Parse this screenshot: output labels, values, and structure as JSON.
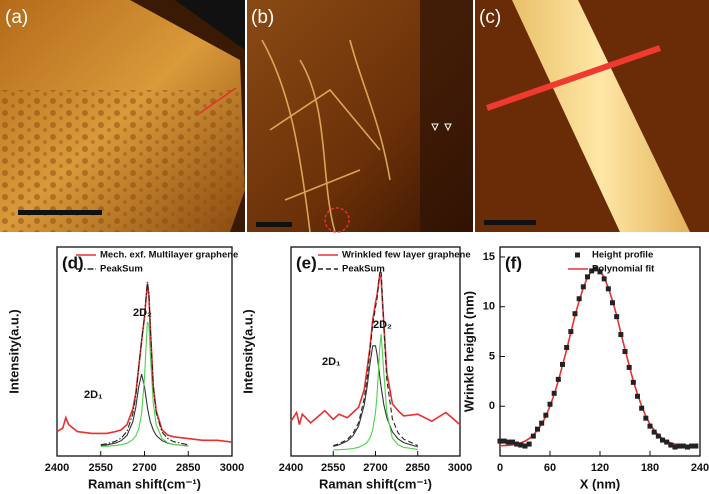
{
  "images": [
    {
      "label": "(a)"
    },
    {
      "label": "(b)"
    },
    {
      "label": "(c)"
    }
  ],
  "chart_data": [
    {
      "type": "line",
      "label": "(d)",
      "xlabel": "Raman shift(cm⁻¹)",
      "ylabel": "Intensity(a.u.)",
      "xlim": [
        2400,
        3000
      ],
      "xticks": [
        2400,
        2550,
        2700,
        2850,
        3000
      ],
      "ylim": [
        0,
        120
      ],
      "annotations": [
        "2D₁",
        "2D₂"
      ],
      "x": [
        2400,
        2420,
        2430,
        2440,
        2470,
        2520,
        2550,
        2570,
        2600,
        2620,
        2640,
        2660,
        2670,
        2680,
        2690,
        2700,
        2705,
        2710,
        2715,
        2720,
        2730,
        2740,
        2760,
        2780,
        2800,
        2850,
        2900,
        2950,
        3000
      ],
      "series": [
        {
          "name": "Mech. exf. Multilayer graphene",
          "color": "#e8302e",
          "style": "solid",
          "legend": true,
          "values": [
            14,
            16,
            22,
            18,
            14,
            13,
            13,
            13,
            14,
            15,
            18,
            27,
            36,
            51,
            66,
            80,
            90,
            99,
            92,
            74,
            40,
            26,
            15,
            12,
            11,
            10,
            9,
            9,
            8
          ]
        },
        {
          "name": "PeakSum",
          "color": "#222222",
          "style": "dashdot",
          "legend": true,
          "values": [
            null,
            null,
            null,
            null,
            null,
            null,
            6.5,
            7.0,
            8.4,
            10.3,
            14.1,
            24.1,
            34.5,
            50.2,
            66.2,
            79.7,
            90.7,
            100,
            93.3,
            73.7,
            39.8,
            24.8,
            13.8,
            10,
            8.2,
            6.45,
            null,
            null,
            null
          ]
        }
      ],
      "components": [
        {
          "color": "#333333",
          "values": [
            null,
            null,
            null,
            null,
            null,
            null,
            6,
            6.4,
            7.4,
            8.8,
            11.8,
            19.7,
            28,
            39.7,
            47,
            39.7,
            33.7,
            28,
            23.3,
            19.7,
            14.8,
            11.8,
            8.8,
            7.4,
            6.6,
            5.8,
            null,
            null,
            null
          ]
        },
        {
          "color": "#4fd24a",
          "values": [
            null,
            null,
            null,
            null,
            null,
            null,
            5.5,
            5.6,
            6.0,
            6.5,
            7.3,
            9.4,
            11.5,
            15.5,
            24.2,
            45,
            62,
            77,
            75,
            59,
            30,
            18,
            10,
            7.6,
            6.6,
            5.65,
            null,
            null,
            null
          ]
        }
      ]
    },
    {
      "type": "line",
      "label": "(e)",
      "xlabel": "Raman shift(cm⁻¹)",
      "ylabel": "Intensity(a.u.)",
      "xlim": [
        2400,
        3000
      ],
      "xticks": [
        2400,
        2550,
        2700,
        2850,
        3000
      ],
      "ylim": [
        0,
        120
      ],
      "annotations": [
        "2D₁",
        "2D₂"
      ],
      "x": [
        2400,
        2420,
        2430,
        2440,
        2470,
        2520,
        2550,
        2570,
        2600,
        2620,
        2640,
        2660,
        2670,
        2680,
        2690,
        2700,
        2705,
        2710,
        2715,
        2720,
        2730,
        2740,
        2760,
        2780,
        2800,
        2850,
        2900,
        2950,
        3000
      ],
      "series": [
        {
          "name": "Wrinkled few layer graphene",
          "color": "#e8302e",
          "style": "solid",
          "legend": true,
          "values": [
            20,
            25,
            18,
            24,
            19,
            26,
            21,
            24,
            22,
            25,
            28,
            38,
            50,
            62,
            78,
            88,
            92,
            98,
            104,
            102,
            75,
            48,
            30,
            26,
            23,
            24,
            20,
            25,
            18
          ]
        },
        {
          "name": "PeakSum",
          "color": "#222222",
          "style": "dashed",
          "legend": true,
          "values": [
            null,
            null,
            null,
            null,
            null,
            null,
            5.9,
            7,
            9.5,
            12.9,
            19.2,
            32.8,
            44.6,
            59.9,
            75.3,
            85.3,
            89.8,
            96.6,
            105,
            106.7,
            73.3,
            44,
            21.2,
            13.4,
            9.7,
            6,
            null,
            null,
            null
          ]
        }
      ],
      "components": [
        {
          "color": "#333333",
          "values": [
            null,
            null,
            null,
            null,
            null,
            null,
            5.5,
            6.4,
            8.6,
            11.6,
            17.2,
            29.3,
            39.7,
            52.6,
            63.3,
            63.3,
            58.8,
            52.6,
            46,
            39.7,
            29.3,
            22,
            13.9,
            9.9,
            7.7,
            5.2,
            null,
            null,
            null
          ]
        },
        {
          "color": "#4fd24a",
          "values": [
            null,
            null,
            null,
            null,
            null,
            null,
            3.4,
            3.6,
            3.9,
            4.3,
            5,
            6.5,
            7.9,
            10.3,
            15,
            25,
            34,
            47,
            62,
            70,
            47,
            25,
            10.3,
            6.5,
            5,
            3.8,
            null,
            null,
            null
          ]
        }
      ]
    },
    {
      "type": "scatter",
      "label": "(f)",
      "xlabel": "X (nm)",
      "ylabel": "Wrinkle height (nm)",
      "xlim": [
        0,
        240
      ],
      "xticks": [
        0,
        60,
        120,
        180,
        240
      ],
      "ylim": [
        -5,
        16
      ],
      "yticks": [
        0,
        5,
        10,
        15
      ],
      "x": [
        0,
        5,
        10,
        15,
        20,
        25,
        30,
        35,
        40,
        45,
        50,
        55,
        60,
        65,
        70,
        75,
        80,
        85,
        90,
        95,
        100,
        105,
        110,
        115,
        120,
        125,
        130,
        135,
        140,
        145,
        150,
        155,
        160,
        165,
        170,
        175,
        180,
        185,
        190,
        195,
        200,
        205,
        210,
        215,
        220,
        225,
        230,
        235
      ],
      "series": [
        {
          "name": "Height profile",
          "color": "#222222",
          "style": "marker",
          "legend": true,
          "values": [
            -3.5,
            -3.5,
            -3.6,
            -3.6,
            -3.8,
            -3.9,
            -4.0,
            -3.8,
            -3.0,
            -2.3,
            -1.7,
            -0.9,
            0.2,
            1.3,
            2.7,
            4.2,
            5.9,
            7.5,
            9.3,
            10.8,
            12.0,
            13.0,
            13.6,
            13.8,
            13.5,
            12.8,
            11.8,
            10.4,
            9.0,
            7.2,
            5.5,
            3.9,
            2.4,
            1.0,
            -0.2,
            -1.2,
            -2.0,
            -2.6,
            -3.0,
            -3.4,
            -3.6,
            -3.9,
            -4.1,
            -4.0,
            -4.0,
            -4.1,
            -4.0,
            -4.0
          ]
        },
        {
          "name": "Polynomial fit",
          "color": "#e8302e",
          "style": "solid",
          "legend": true,
          "values": [
            -3.97,
            -3.96,
            -3.92,
            -3.87,
            -3.79,
            -3.68,
            -3.5,
            -3.25,
            -2.9,
            -2.4,
            -1.8,
            -1.0,
            0.0,
            1.2,
            2.55,
            4.1,
            5.7,
            7.4,
            9.1,
            10.6,
            11.9,
            12.95,
            13.6,
            13.8,
            13.6,
            12.95,
            11.9,
            10.6,
            9.1,
            7.4,
            5.7,
            4.1,
            2.55,
            1.2,
            0.0,
            -1.0,
            -1.8,
            -2.4,
            -2.9,
            -3.25,
            -3.5,
            -3.68,
            -3.79,
            -3.87,
            -3.92,
            -3.96,
            -3.97,
            -3.98
          ]
        }
      ]
    }
  ]
}
